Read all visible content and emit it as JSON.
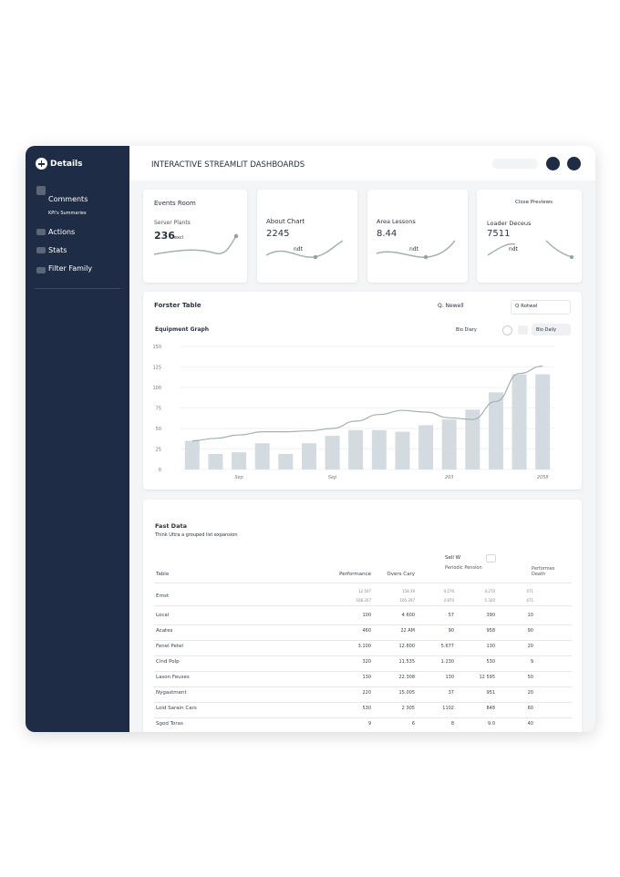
{
  "sidebar": {
    "brand": "Details",
    "items": [
      "Comments",
      "KPI's Summaries",
      "Actions",
      "Stats",
      "Filter Family"
    ]
  },
  "header": {
    "title": "INTERACTIVE STREAMLIT DASHBOARDS"
  },
  "kpis": [
    {
      "heading": "Events Room",
      "label": "Server Plants",
      "value": "236",
      "note": "excl"
    },
    {
      "label": "About Chart",
      "value": "2245",
      "note": "ndt"
    },
    {
      "label": "Area Lessons",
      "value": "8.44",
      "note": "ndt"
    },
    {
      "heading": "Close Previews",
      "label": "Loader Deceus",
      "value": "7511",
      "note": "ndt"
    }
  ],
  "chart_panel": {
    "title": "Forster Table",
    "search": "Q. Newell",
    "dropdown": "Q Rotwel",
    "controls": [
      "Bio Diary",
      "Bio Daily"
    ]
  },
  "chart_data": {
    "type": "bar",
    "title": "Equipment Graph",
    "categories": [
      null,
      null,
      "Sep",
      null,
      null,
      null,
      "Sep",
      null,
      null,
      null,
      null,
      "203",
      null,
      null,
      null,
      "2058"
    ],
    "series": [
      {
        "type": "bar",
        "color": "#d3dbe1",
        "values": [
          35,
          19,
          21,
          32,
          19,
          32,
          41,
          48,
          48,
          46,
          54,
          61,
          73,
          94,
          116,
          116
        ]
      },
      {
        "type": "line",
        "color": "#a3b2ae",
        "values": [
          35,
          38,
          42,
          46,
          46,
          47,
          50,
          59,
          67,
          72,
          70,
          63,
          61,
          83,
          117,
          126
        ]
      }
    ],
    "ylim": [
      0,
      150
    ],
    "yticks": [
      0,
      25,
      50,
      75,
      100,
      125,
      150
    ],
    "grid": true
  },
  "table": {
    "title": "Fast Data",
    "subtitle": "Think Ultra a grouped list expansion",
    "group_headers": [
      {
        "title": "Sell W",
        "sub": "Periodic Pension"
      },
      {
        "title": "Performes Death"
      }
    ],
    "columns": [
      "Table",
      "Performance",
      "Overs Cary"
    ],
    "rows": [
      [
        "Ernst",
        [
          "12.507",
          "168.207"
        ],
        [
          "158.39",
          "105.297"
        ],
        [
          "4.270",
          "3.870"
        ],
        [
          "4.270",
          "5.320"
        ],
        [
          "471",
          "471"
        ]
      ],
      [
        "Local",
        "100",
        "4 600",
        "57",
        "390",
        "10"
      ],
      [
        "Acates",
        "460",
        "22 AM",
        "90",
        "958",
        "90"
      ],
      [
        "Fenel Petel",
        "3.100",
        "12.800",
        "5.677",
        "130",
        "20"
      ],
      [
        "Cind Polp",
        "320",
        "11.535",
        "1.230",
        "530",
        "9"
      ],
      [
        "Lason Feuses",
        "130",
        "22.308",
        "130",
        "12 595",
        "50"
      ],
      [
        "Nygastment",
        "220",
        "15.005",
        "37",
        "951",
        "20"
      ],
      [
        "Loid Sarain Cars",
        "530",
        "2 305",
        "1102",
        "848",
        "60"
      ],
      [
        "Sgod Toras",
        "9",
        "6",
        "8",
        "9.0",
        "40"
      ]
    ]
  }
}
